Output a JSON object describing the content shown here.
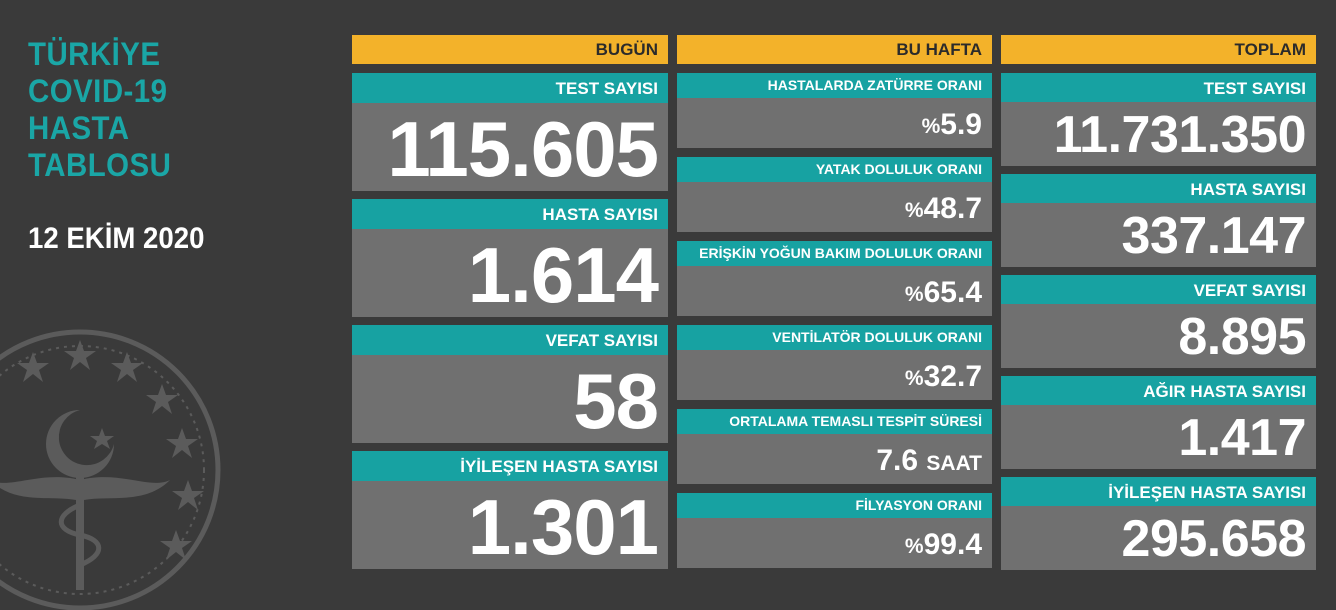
{
  "title": [
    "TÜRKİYE",
    "COVID-19",
    "HASTA",
    "TABLOSU"
  ],
  "date": "12 EKİM 2020",
  "colors": {
    "accent_teal": "#17a2a2",
    "header_yellow": "#f3b22a",
    "value_gray": "#707070",
    "background": "#3a3a3a"
  },
  "emblem_icon": "ministry-of-health-emblem-icon",
  "today": {
    "header": "BUGÜN",
    "items": [
      {
        "label": "TEST SAYISI",
        "value": "115.605"
      },
      {
        "label": "HASTA SAYISI",
        "value": "1.614"
      },
      {
        "label": "VEFAT SAYISI",
        "value": "58"
      },
      {
        "label": "İYİLEŞEN HASTA SAYISI",
        "value": "1.301"
      }
    ]
  },
  "this_week": {
    "header": "BU HAFTA",
    "items": [
      {
        "label": "HASTALARDA ZATÜRRE ORANI",
        "prefix": "%",
        "value": "5.9",
        "suffix": ""
      },
      {
        "label": "YATAK DOLULUK ORANI",
        "prefix": "%",
        "value": "48.7",
        "suffix": ""
      },
      {
        "label": "ERİŞKİN YOĞUN BAKIM DOLULUK ORANI",
        "prefix": "%",
        "value": "65.4",
        "suffix": ""
      },
      {
        "label": "VENTİLATÖR DOLULUK ORANI",
        "prefix": "%",
        "value": "32.7",
        "suffix": ""
      },
      {
        "label": "ORTALAMA TEMASLI TESPİT SÜRESİ",
        "prefix": "",
        "value": "7.6",
        "suffix": "SAAT"
      },
      {
        "label": "FİLYASYON ORANI",
        "prefix": "%",
        "value": "99.4",
        "suffix": ""
      }
    ]
  },
  "total": {
    "header": "TOPLAM",
    "items": [
      {
        "label": "TEST SAYISI",
        "value": "11.731.350"
      },
      {
        "label": "HASTA SAYISI",
        "value": "337.147"
      },
      {
        "label": "VEFAT SAYISI",
        "value": "8.895"
      },
      {
        "label": "AĞIR HASTA SAYISI",
        "value": "1.417"
      },
      {
        "label": "İYİLEŞEN HASTA SAYISI",
        "value": "295.658"
      }
    ]
  }
}
